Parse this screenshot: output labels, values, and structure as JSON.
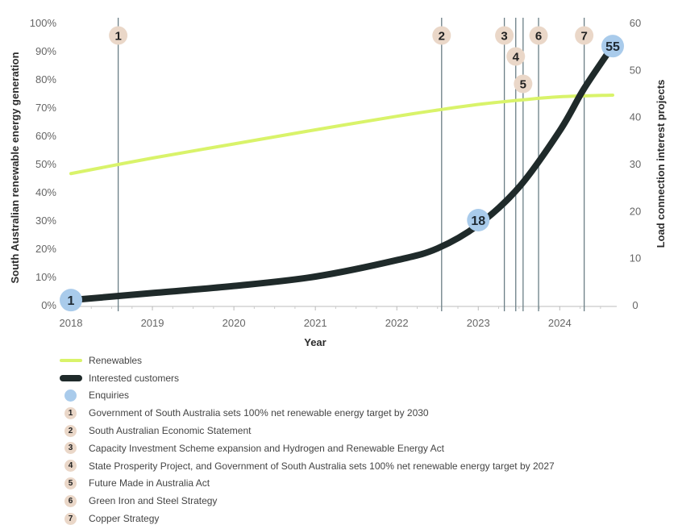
{
  "chart_data": {
    "type": "line",
    "xlabel": "Year",
    "ylabel_left": "South Australian renewable energy generation",
    "ylabel_right": "Load connection interest projects",
    "x_ticks": [
      "2018",
      "2019",
      "2020",
      "2021",
      "2022",
      "2023",
      "2024"
    ],
    "xlim": [
      2018,
      2024.65
    ],
    "y_left_ticks": [
      "0%",
      "10%",
      "20%",
      "30%",
      "40%",
      "50%",
      "60%",
      "70%",
      "80%",
      "90%",
      "100%"
    ],
    "y_left_lim": [
      0,
      100
    ],
    "y_right_ticks": [
      "0",
      "10",
      "20",
      "30",
      "40",
      "50",
      "60"
    ],
    "y_right_lim": [
      0,
      60
    ],
    "grid": false,
    "colors": {
      "renewables": "#d9f36a",
      "customers": "#1f2a2a",
      "enquiries": "#a9cbeb",
      "event_marker": "#ead7c8",
      "event_line": "#6b7f86"
    },
    "series": [
      {
        "name": "Renewables",
        "axis": "left",
        "x": [
          2018,
          2019,
          2020,
          2021,
          2022,
          2022.5,
          2023,
          2023.5,
          2024,
          2024.65
        ],
        "values": [
          46.5,
          52,
          57,
          62,
          66.8,
          69,
          71,
          72.5,
          73.7,
          74.3
        ]
      },
      {
        "name": "Interested customers",
        "axis": "right",
        "x": [
          2018,
          2019,
          2020,
          2021,
          2022,
          2022.5,
          2023,
          2023.5,
          2024,
          2024.3,
          2024.65
        ],
        "values": [
          1,
          2.5,
          4,
          6,
          9.5,
          12,
          17,
          25,
          37,
          46,
          55
        ]
      }
    ],
    "enquiries": [
      {
        "x": 2018,
        "value": 1,
        "label": "1"
      },
      {
        "x": 2023,
        "value": 18,
        "label": "18"
      },
      {
        "x": 2024.65,
        "value": 55,
        "label": "55"
      }
    ],
    "events": [
      {
        "id": "1",
        "x": 2018.58,
        "row": 0
      },
      {
        "id": "2",
        "x": 2022.55,
        "row": 0
      },
      {
        "id": "3",
        "x": 2023.32,
        "row": 0
      },
      {
        "id": "4",
        "x": 2023.46,
        "row": 1
      },
      {
        "id": "5",
        "x": 2023.55,
        "row": 2
      },
      {
        "id": "6",
        "x": 2023.74,
        "row": 0
      },
      {
        "id": "7",
        "x": 2024.3,
        "row": 0
      }
    ]
  },
  "legend": {
    "renewables": "Renewables",
    "customers": "Interested customers",
    "enquiries": "Enquiries",
    "events": [
      {
        "num": "1",
        "text": "Government of South Australia sets 100% net renewable energy target by 2030"
      },
      {
        "num": "2",
        "text": "South Australian Economic Statement"
      },
      {
        "num": "3",
        "text": "Capacity Investment Scheme expansion and Hydrogen and Renewable Energy Act"
      },
      {
        "num": "4",
        "text": "State Prosperity Project, and Government of South Australia sets 100% net renewable energy target by 2027"
      },
      {
        "num": "5",
        "text": "Future Made in Australia Act"
      },
      {
        "num": "6",
        "text": "Green Iron and Steel Strategy"
      },
      {
        "num": "7",
        "text": "Copper Strategy"
      }
    ]
  }
}
